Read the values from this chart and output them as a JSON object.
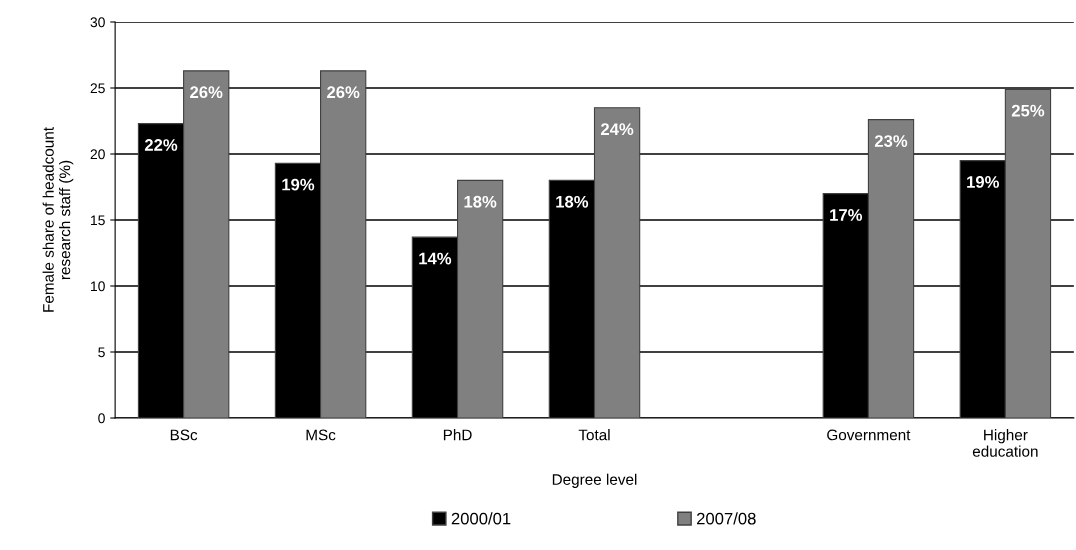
{
  "chart_data": {
    "type": "bar",
    "xlabel": "Degree level",
    "ylabel": "Female share of headcount\nresearch staff (%)",
    "categories": [
      "BSc",
      "MSc",
      "PhD",
      "Total",
      null,
      "Government",
      "Higher\neducation"
    ],
    "series": [
      {
        "name": "2000/01",
        "color": "#000000",
        "values": [
          22.3,
          19.3,
          13.7,
          18.0,
          null,
          17.0,
          19.5
        ],
        "value_labels": [
          "22%",
          "19%",
          "14%",
          "18%",
          null,
          "17%",
          "19%"
        ]
      },
      {
        "name": "2007/08",
        "color": "#808080",
        "values": [
          26.3,
          26.3,
          18.0,
          23.5,
          null,
          22.6,
          24.9
        ],
        "value_labels": [
          "26%",
          "26%",
          "18%",
          "24%",
          null,
          "23%",
          "25%"
        ]
      }
    ],
    "ylim": [
      0,
      30
    ],
    "yticks": [
      0,
      5,
      10,
      15,
      20,
      25,
      30
    ],
    "grid": "y",
    "legend": "bottom"
  }
}
